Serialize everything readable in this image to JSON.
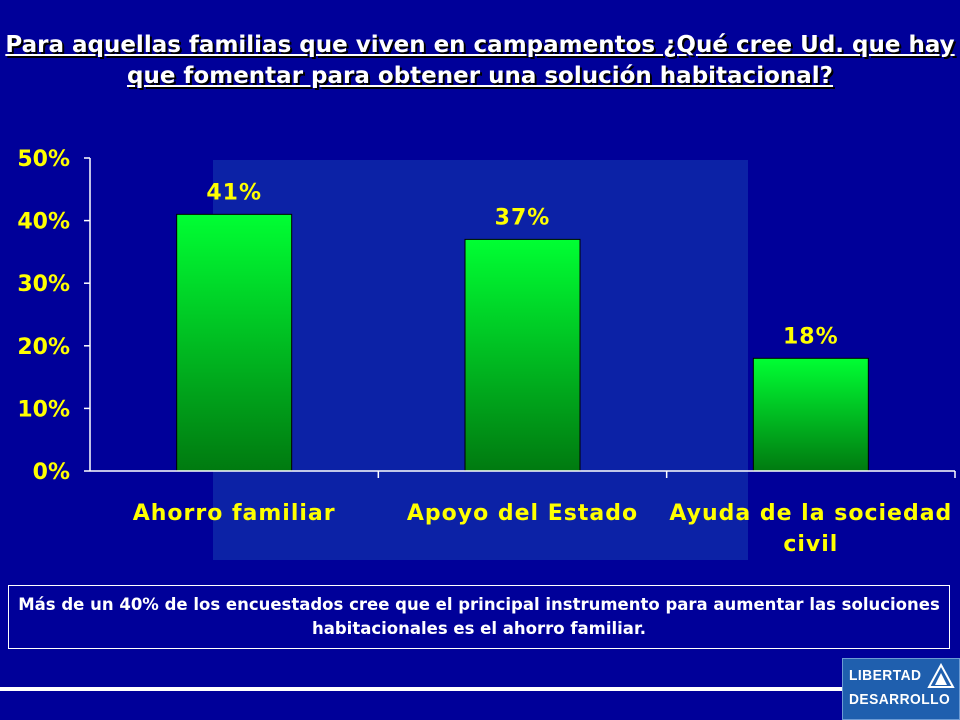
{
  "title": {
    "line1": "Para aquellas familias que viven en campamentos ¿Qué cree Ud. que hay",
    "line2": "que fomentar para obtener una solución habitacional?"
  },
  "chart_data": {
    "type": "bar",
    "categories": [
      [
        "Ahorro familiar"
      ],
      [
        "Apoyo del Estado"
      ],
      [
        "Ayuda de la sociedad",
        "civil"
      ]
    ],
    "values": [
      41,
      37,
      18
    ],
    "data_labels": [
      "41%",
      "37%",
      "18%"
    ],
    "yticks": [
      "0%",
      "10%",
      "20%",
      "30%",
      "40%",
      "50%"
    ],
    "ylim": [
      0,
      50
    ],
    "xlabel": "",
    "ylabel": "",
    "grid": false,
    "legend": "none",
    "bar_color_top": "#00ff33",
    "bar_color_bottom": "#007a10",
    "label_color": "#ffff00"
  },
  "note": "Más de un 40% de los encuestados cree que el principal instrumento para aumentar las soluciones habitacionales es el ahorro familiar.",
  "logo": {
    "line1": "LIBERTAD",
    "line2": "DESARROLLO"
  },
  "colors": {
    "background": "#000099",
    "plot_panel": "#0c22a6",
    "axis": "#ffffff",
    "text": "#ffffff"
  }
}
